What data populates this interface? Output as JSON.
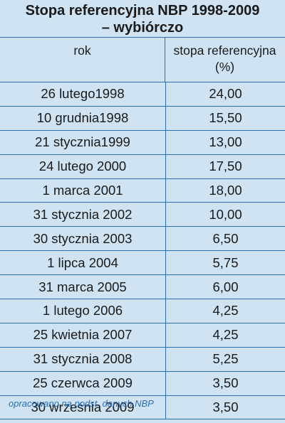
{
  "chart_data": {
    "type": "table",
    "title_line1": "Stopa referencyjna NBP 1998-2009",
    "title_line2": "– wybiórczo",
    "columns": [
      "rok",
      "stopa referencyjna",
      "(%)"
    ],
    "rows": [
      {
        "date": "26 lutego1998",
        "rate": "24,00"
      },
      {
        "date": "10 grudnia1998",
        "rate": "15,50"
      },
      {
        "date": "21 stycznia1999",
        "rate": "13,00"
      },
      {
        "date": "24 lutego 2000",
        "rate": "17,50"
      },
      {
        "date": "1 marca 2001",
        "rate": "18,00"
      },
      {
        "date": "31 stycznia 2002",
        "rate": "10,00"
      },
      {
        "date": "30 stycznia 2003",
        "rate": "6,50"
      },
      {
        "date": "1 lipca 2004",
        "rate": "5,75"
      },
      {
        "date": "31 marca 2005",
        "rate": "6,00"
      },
      {
        "date": "1 lutego 2006",
        "rate": "4,25"
      },
      {
        "date": "25 kwietnia 2007",
        "rate": "4,25"
      },
      {
        "date": "31 stycznia 2008",
        "rate": "5,25"
      },
      {
        "date": "25 czerwca 2009",
        "rate": "3,50"
      },
      {
        "date": "30 września 2009",
        "rate": "3,50"
      }
    ],
    "source": "opracowano na podst. danych NBP"
  },
  "colors": {
    "background": "#cfe3f3",
    "rule": "#2a6fb3",
    "source_text": "#2a6fb3"
  }
}
